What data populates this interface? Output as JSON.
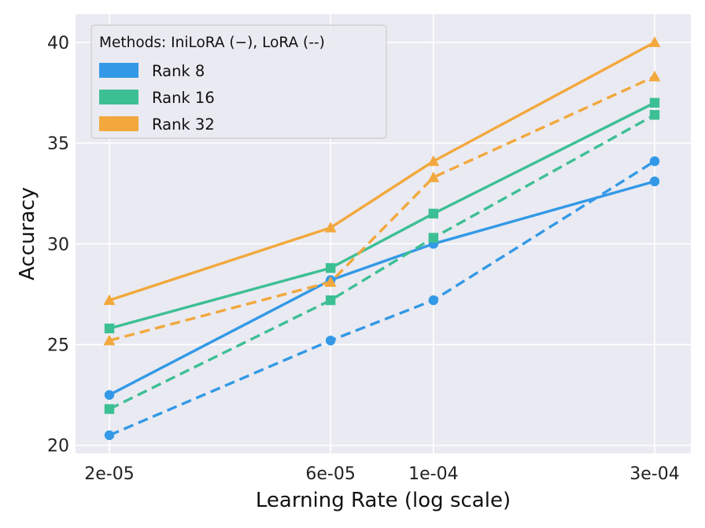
{
  "chart_data": {
    "type": "line",
    "title": "",
    "xlabel": "Learning Rate (log scale)",
    "ylabel": "Accuracy",
    "x_scale": "log",
    "x": [
      2e-05,
      6e-05,
      0.0001,
      0.0003
    ],
    "xtick_labels": [
      "2e-05",
      "6e-05",
      "1e-04",
      "3e-04"
    ],
    "yticks": [
      20,
      25,
      30,
      35,
      40
    ],
    "ytick_labels": [
      "20",
      "25",
      "30",
      "35",
      "40"
    ],
    "ylim": [
      19.6,
      41.4
    ],
    "grid": true,
    "legend": {
      "title": "Methods: IniLoRA (−), LoRA (--)",
      "placement": "top-left",
      "entries": [
        {
          "label": "Rank 8",
          "color": "#3399e6"
        },
        {
          "label": "Rank 16",
          "color": "#3dbf94"
        },
        {
          "label": "Rank 32",
          "color": "#f2a83c"
        }
      ]
    },
    "series": [
      {
        "name": "Rank 8",
        "method": "IniLoRA",
        "line": "solid",
        "marker": "circle",
        "color": "#3399e6",
        "values": [
          22.5,
          28.2,
          30.0,
          33.1
        ]
      },
      {
        "name": "Rank 8",
        "method": "LoRA",
        "line": "dashed",
        "marker": "circle",
        "color": "#3399e6",
        "values": [
          20.5,
          25.2,
          27.2,
          34.1
        ]
      },
      {
        "name": "Rank 16",
        "method": "IniLoRA",
        "line": "solid",
        "marker": "square",
        "color": "#3dbf94",
        "values": [
          25.8,
          28.8,
          31.5,
          37.0
        ]
      },
      {
        "name": "Rank 16",
        "method": "LoRA",
        "line": "dashed",
        "marker": "square",
        "color": "#3dbf94",
        "values": [
          21.8,
          27.2,
          30.3,
          36.4
        ]
      },
      {
        "name": "Rank 32",
        "method": "IniLoRA",
        "line": "solid",
        "marker": "triangle",
        "color": "#f2a83c",
        "values": [
          27.2,
          30.8,
          34.1,
          40.0
        ]
      },
      {
        "name": "Rank 32",
        "method": "LoRA",
        "line": "dashed",
        "marker": "triangle",
        "color": "#f2a83c",
        "values": [
          25.2,
          28.1,
          33.3,
          38.3
        ]
      }
    ],
    "colors": {
      "plot_background": "#eaeaf2",
      "grid": "#ffffff"
    }
  }
}
